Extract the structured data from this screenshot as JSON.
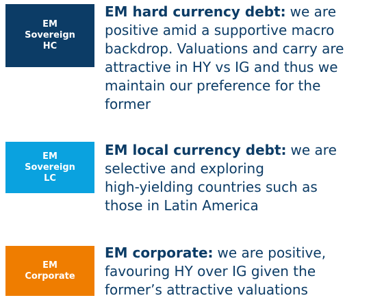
{
  "items": [
    {
      "label_lines": [
        "EM",
        "Sovereign",
        "HC"
      ],
      "heading": "EM hard currency debt:",
      "lines": [
        "we are",
        "positive amid a supportive macro",
        "backdrop. Valuations and carry are",
        "attractive in HY vs IG and thus we",
        "maintain our preference for the",
        "former"
      ],
      "color": "#0c3c66"
    },
    {
      "label_lines": [
        "EM",
        "Sovereign",
        "LC"
      ],
      "heading": "EM local currency debt:",
      "lines": [
        "we are",
        "selective and exploring",
        "high-yielding countries such as",
        "those in Latin America"
      ],
      "color": "#0aa2df"
    },
    {
      "label_lines": [
        "EM",
        "Corporate"
      ],
      "heading": "EM corporate:",
      "lines": [
        "we are positive,",
        "favouring HY over IG given the",
        "former’s attractive valuations"
      ],
      "color": "#ef7d00"
    }
  ]
}
